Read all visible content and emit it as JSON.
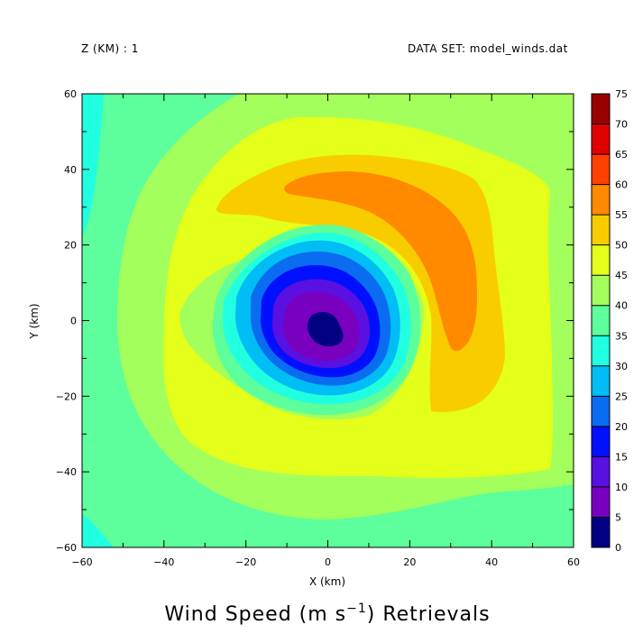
{
  "header": {
    "left": "Z (KM) : 1",
    "right": "DATA SET: model_winds.dat"
  },
  "title": {
    "prefix": "Wind Speed (m s",
    "superscript": "−1",
    "suffix": ") Retrievals"
  },
  "chart_data": {
    "type": "contour-filled",
    "xlabel": "X (km)",
    "ylabel": "Y (km)",
    "xlim": [
      -60,
      60
    ],
    "ylim": [
      -60,
      60
    ],
    "x_ticks": [
      -60,
      -40,
      -20,
      0,
      20,
      40,
      60
    ],
    "y_ticks": [
      -60,
      -40,
      -20,
      0,
      20,
      40,
      60
    ],
    "variable": "Wind Speed",
    "units": "m s-1",
    "field_description": "Vortex centered near (0,0) with calm core (<5) and maximum winds 55-60 concentrated in an arc to the north-east (x 5..40, y -10..35); background 40-45.",
    "features": {
      "center": [
        1,
        -2
      ],
      "core_min": "0-5",
      "max_band": "55-60",
      "max_region_center": [
        22,
        22
      ]
    },
    "colorbar": {
      "levels": [
        0,
        5,
        10,
        15,
        20,
        25,
        30,
        35,
        40,
        45,
        50,
        55,
        60,
        65,
        70,
        75
      ],
      "colors": [
        "#000080",
        "#7a00bf",
        "#5a10e0",
        "#0010ff",
        "#0a6cf0",
        "#00bdf5",
        "#20ffe0",
        "#5cff9c",
        "#a3ff5c",
        "#e3ff1a",
        "#f9cc00",
        "#ff8a00",
        "#ff4000",
        "#e00000",
        "#990000"
      ]
    }
  }
}
